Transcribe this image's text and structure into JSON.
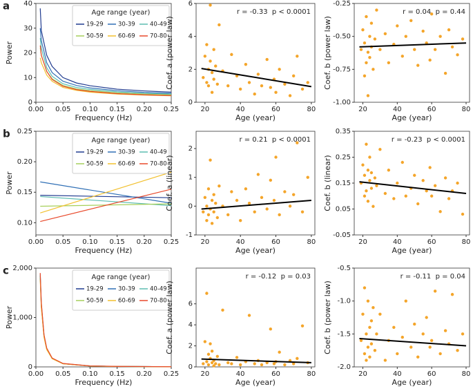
{
  "chart_data": [
    {
      "type": "line",
      "panel_label": "a",
      "xlabel": "Frequency (Hz)",
      "ylabel": "Power",
      "legend_title": "Age range (year)",
      "legend": "upper right",
      "x": [
        0.008,
        0.01,
        0.02,
        0.03,
        0.05,
        0.075,
        0.1,
        0.15,
        0.2,
        0.25
      ],
      "series": [
        {
          "name": "19-29",
          "color": "#1f3a8f",
          "values": [
            38,
            29,
            19,
            14.5,
            10,
            7.8,
            6.7,
            5.3,
            4.6,
            4.1
          ]
        },
        {
          "name": "30-39",
          "color": "#2f6fb5",
          "values": [
            30,
            25,
            16,
            12,
            8.5,
            6.8,
            5.8,
            4.7,
            4.0,
            3.6
          ]
        },
        {
          "name": "40-49",
          "color": "#5cbcb0",
          "values": [
            26,
            22,
            14,
            10.5,
            7.5,
            6,
            5.2,
            4.2,
            3.6,
            3.3
          ]
        },
        {
          "name": "50-59",
          "color": "#a6cf5a",
          "values": [
            22,
            19,
            12.5,
            9.5,
            6.8,
            5.4,
            4.7,
            3.8,
            3.3,
            3.0
          ]
        },
        {
          "name": "60-69",
          "color": "#f2c02e",
          "values": [
            18,
            16,
            11,
            8.5,
            6,
            4.8,
            4.1,
            3.3,
            2.9,
            2.6
          ]
        },
        {
          "name": "70-80",
          "color": "#e8482a",
          "values": [
            23,
            19,
            12.5,
            9.2,
            6.5,
            5.1,
            4.4,
            3.5,
            3.0,
            2.7
          ]
        }
      ],
      "xlim": [
        0,
        0.25
      ],
      "xticks": [
        {
          "value": 0,
          "label": "0.00"
        },
        0.05,
        {
          "value": 0.1,
          "label": "0.10"
        },
        0.15,
        {
          "value": 0.2,
          "label": "0.20"
        },
        0.25
      ],
      "ylim": [
        0,
        40
      ],
      "yticks": [
        0,
        10,
        20,
        30,
        40
      ]
    },
    {
      "type": "scatter",
      "xlabel": "Age (year)",
      "ylabel": "Coef. a (power law)",
      "annotation": "r = -0.33  p < 0.0001",
      "color": "#f4a52a",
      "x": [
        19,
        20,
        21,
        21,
        22,
        22,
        23,
        23,
        24,
        24,
        25,
        25,
        26,
        27,
        28,
        30,
        33,
        35,
        38,
        40,
        43,
        45,
        48,
        50,
        52,
        55,
        57,
        59,
        60,
        62,
        65,
        68,
        70,
        72,
        75,
        78
      ],
      "values": [
        1.5,
        2.8,
        1.2,
        3.5,
        2.0,
        1.0,
        5.9,
        2.5,
        1.8,
        0.6,
        3.2,
        1.4,
        2.2,
        1.1,
        4.7,
        1.9,
        1.0,
        2.9,
        1.6,
        0.8,
        2.3,
        1.2,
        0.5,
        1.7,
        1.0,
        2.6,
        0.9,
        1.4,
        0.6,
        2.0,
        1.1,
        0.4,
        1.6,
        2.8,
        0.8,
        1.2
      ],
      "fit": {
        "x": [
          18,
          80
        ],
        "y": [
          2.05,
          0.95
        ]
      },
      "xlim": [
        15,
        82
      ],
      "xticks": [
        20,
        40,
        60,
        80
      ],
      "ylim": [
        0,
        6
      ],
      "yticks": [
        0,
        2,
        4,
        6
      ]
    },
    {
      "type": "scatter",
      "xlabel": "Age (year)",
      "ylabel": "Coef. b (power law)",
      "annotation": "r = 0.04  p = 0.44",
      "color": "#f4a52a",
      "x": [
        19,
        20,
        21,
        21,
        22,
        22,
        23,
        23,
        24,
        24,
        25,
        25,
        26,
        27,
        28,
        30,
        33,
        35,
        38,
        40,
        43,
        45,
        48,
        50,
        52,
        55,
        57,
        59,
        60,
        62,
        65,
        68,
        70,
        72,
        75,
        78
      ],
      "values": [
        -0.6,
        -0.45,
        -0.8,
        -0.55,
        -0.7,
        -0.35,
        -0.62,
        -0.95,
        -0.5,
        -0.66,
        -0.4,
        -0.58,
        -0.75,
        -0.52,
        -0.3,
        -0.6,
        -0.48,
        -0.7,
        -0.56,
        -0.42,
        -0.65,
        -0.5,
        -0.38,
        -0.6,
        -0.72,
        -0.46,
        -0.55,
        -0.68,
        -0.33,
        -0.6,
        -0.5,
        -0.78,
        -0.45,
        -0.58,
        -0.64,
        -0.52
      ],
      "fit": {
        "x": [
          18,
          80
        ],
        "y": [
          -0.58,
          -0.55
        ]
      },
      "xlim": [
        15,
        82
      ],
      "xticks": [
        20,
        40,
        60,
        80
      ],
      "ylim": [
        -1,
        -0.25
      ],
      "yticks": [
        {
          "value": -1,
          "label": "-1.00"
        },
        -0.75,
        {
          "value": -0.5,
          "label": "-0.50"
        },
        -0.25
      ]
    },
    {
      "type": "line",
      "panel_label": "b",
      "xlabel": "Frequency (Hz)",
      "ylabel": "Power",
      "legend_title": "Age range (year)",
      "legend": "upper right",
      "x": [
        0.008,
        0.25
      ],
      "series": [
        {
          "name": "19-29",
          "color": "#1f3a8f",
          "values": [
            0.145,
            0.141
          ]
        },
        {
          "name": "30-39",
          "color": "#2f6fb5",
          "values": [
            0.167,
            0.132
          ]
        },
        {
          "name": "40-49",
          "color": "#5cbcb0",
          "values": [
            0.143,
            0.128
          ]
        },
        {
          "name": "50-59",
          "color": "#a6cf5a",
          "values": [
            0.127,
            0.131
          ]
        },
        {
          "name": "60-69",
          "color": "#f2c02e",
          "values": [
            0.116,
            0.183
          ]
        },
        {
          "name": "70-80",
          "color": "#e8482a",
          "values": [
            0.102,
            0.155
          ]
        }
      ],
      "xlim": [
        0,
        0.25
      ],
      "xticks": [
        {
          "value": 0,
          "label": "0.00"
        },
        0.05,
        {
          "value": 0.1,
          "label": "0.10"
        },
        0.15,
        {
          "value": 0.2,
          "label": "0.20"
        },
        0.25
      ],
      "ylim": [
        0.08,
        0.25
      ],
      "yticks": [
        {
          "value": 0.1,
          "label": "0.10"
        },
        0.15,
        {
          "value": 0.2,
          "label": "0.20"
        },
        0.25
      ]
    },
    {
      "type": "scatter",
      "xlabel": "Age (year)",
      "ylabel": "Coef. a (linear)",
      "annotation": "r = 0.21  p < 0.0001",
      "color": "#f4a52a",
      "x": [
        19,
        20,
        21,
        21,
        22,
        22,
        23,
        23,
        24,
        24,
        25,
        25,
        26,
        27,
        28,
        30,
        33,
        35,
        38,
        40,
        43,
        45,
        48,
        50,
        52,
        55,
        57,
        59,
        60,
        62,
        65,
        68,
        70,
        72,
        75,
        78
      ],
      "values": [
        -0.2,
        0.3,
        -0.5,
        0.0,
        0.6,
        -0.3,
        1.6,
        -0.1,
        0.2,
        -0.6,
        0.4,
        -0.2,
        0.1,
        -0.4,
        0.7,
        0.0,
        -0.3,
        0.5,
        0.2,
        -0.5,
        0.6,
        0.1,
        -0.2,
        1.1,
        0.3,
        -0.1,
        0.9,
        0.2,
        1.7,
        -0.3,
        0.5,
        0.0,
        0.4,
        2.2,
        -0.2,
        1.0
      ],
      "fit": {
        "x": [
          18,
          80
        ],
        "y": [
          -0.1,
          0.2
        ]
      },
      "xlim": [
        15,
        82
      ],
      "xticks": [
        20,
        40,
        60,
        80
      ],
      "ylim": [
        -1,
        2.6
      ],
      "yticks": [
        -1,
        0,
        1,
        2
      ]
    },
    {
      "type": "scatter",
      "xlabel": "Age (year)",
      "ylabel": "Coef. b (linear)",
      "annotation": "r = -0.23  p < 0.0001",
      "color": "#f4a52a",
      "x": [
        19,
        20,
        21,
        21,
        22,
        22,
        23,
        23,
        24,
        24,
        25,
        25,
        26,
        27,
        28,
        30,
        33,
        35,
        38,
        40,
        43,
        45,
        48,
        50,
        52,
        55,
        57,
        59,
        60,
        62,
        65,
        68,
        70,
        72,
        75,
        78
      ],
      "values": [
        0.15,
        0.22,
        0.1,
        0.18,
        0.3,
        0.12,
        0.2,
        0.08,
        0.16,
        0.25,
        0.13,
        0.19,
        0.06,
        0.17,
        0.14,
        0.28,
        0.11,
        0.2,
        0.09,
        0.15,
        0.23,
        0.1,
        0.13,
        0.18,
        0.07,
        0.16,
        0.12,
        0.21,
        0.1,
        0.14,
        0.04,
        0.17,
        0.09,
        0.12,
        0.15,
        0.03
      ],
      "fit": {
        "x": [
          18,
          80
        ],
        "y": [
          0.155,
          0.11
        ]
      },
      "xlim": [
        15,
        82
      ],
      "xticks": [
        20,
        40,
        60,
        80
      ],
      "ylim": [
        -0.05,
        0.35
      ],
      "yticks": [
        -0.05,
        0.05,
        0.15,
        0.25,
        0.35
      ]
    },
    {
      "type": "line",
      "panel_label": "c",
      "xlabel": "Frequency (Hz)",
      "ylabel": "Power",
      "legend_title": "Age range (year)",
      "legend": "upper right",
      "x": [
        0.008,
        0.01,
        0.015,
        0.02,
        0.03,
        0.05,
        0.1,
        0.15,
        0.25
      ],
      "series": [
        {
          "name": "19-29",
          "color": "#1f3a8f",
          "values": [
            1850,
            1250,
            620,
            360,
            170,
            65,
            18,
            9,
            4
          ]
        },
        {
          "name": "30-39",
          "color": "#2f6fb5",
          "values": [
            1800,
            1220,
            610,
            355,
            168,
            64,
            18,
            9,
            4
          ]
        },
        {
          "name": "40-49",
          "color": "#5cbcb0",
          "values": [
            1880,
            1280,
            640,
            370,
            175,
            67,
            19,
            9,
            4
          ]
        },
        {
          "name": "50-59",
          "color": "#a6cf5a",
          "values": [
            1820,
            1240,
            625,
            362,
            172,
            66,
            18,
            9,
            4
          ]
        },
        {
          "name": "60-69",
          "color": "#f2c02e",
          "values": [
            1760,
            1200,
            600,
            350,
            165,
            63,
            17,
            8,
            4
          ]
        },
        {
          "name": "70-80",
          "color": "#e8482a",
          "values": [
            1900,
            1300,
            650,
            380,
            180,
            70,
            20,
            10,
            4
          ]
        }
      ],
      "xlim": [
        0,
        0.25
      ],
      "xticks": [
        {
          "value": 0,
          "label": "0.00"
        },
        0.05,
        {
          "value": 0.1,
          "label": "0.10"
        },
        0.15,
        {
          "value": 0.2,
          "label": "0.20"
        },
        0.25
      ],
      "ylim": [
        0,
        2000
      ],
      "yticks": [
        0,
        {
          "value": 1000,
          "label": "1,000"
        },
        {
          "value": 2000,
          "label": "2,000"
        }
      ]
    },
    {
      "type": "scatter",
      "xlabel": "Age (year)",
      "ylabel": "Coef. a (power law)",
      "annotation": "r = -0.12  p = 0.03",
      "color": "#f4a52a",
      "x": [
        19,
        20,
        21,
        21,
        22,
        22,
        23,
        23,
        24,
        24,
        25,
        25,
        26,
        27,
        28,
        30,
        33,
        35,
        38,
        40,
        43,
        45,
        48,
        50,
        52,
        55,
        57,
        59,
        60,
        62,
        65,
        68,
        70,
        72,
        75,
        78
      ],
      "values": [
        0.3,
        2.4,
        0.5,
        7.0,
        1.2,
        0.2,
        0.8,
        2.2,
        0.4,
        1.5,
        0.1,
        0.6,
        0.3,
        1.0,
        0.2,
        5.4,
        0.4,
        0.3,
        0.9,
        0.2,
        0.5,
        4.9,
        0.3,
        0.6,
        0.2,
        0.4,
        3.6,
        0.3,
        0.5,
        1.4,
        0.2,
        0.6,
        0.3,
        0.8,
        3.9,
        0.4
      ],
      "fit": {
        "x": [
          18,
          80
        ],
        "y": [
          0.75,
          0.4
        ]
      },
      "xlim": [
        15,
        82
      ],
      "xticks": [
        20,
        40,
        60,
        80
      ],
      "ylim": [
        0,
        9.4
      ],
      "yticks": [
        0,
        2,
        4,
        6
      ]
    },
    {
      "type": "scatter",
      "xlabel": "Age (year)",
      "ylabel": "Coef. b (power law)",
      "annotation": "r = -0.11  p = 0.04",
      "color": "#f4a52a",
      "x": [
        19,
        20,
        21,
        21,
        22,
        22,
        23,
        23,
        24,
        24,
        25,
        25,
        26,
        27,
        28,
        30,
        33,
        35,
        38,
        40,
        43,
        45,
        48,
        50,
        52,
        55,
        57,
        59,
        60,
        62,
        65,
        68,
        70,
        72,
        75,
        78
      ],
      "values": [
        -1.6,
        -1.2,
        -1.8,
        -0.8,
        -1.5,
        -1.9,
        -1.0,
        -1.7,
        -1.4,
        -1.85,
        -1.3,
        -1.65,
        -1.1,
        -1.75,
        -1.5,
        -1.2,
        -1.9,
        -1.6,
        -1.4,
        -1.8,
        -1.55,
        -1.0,
        -1.7,
        -1.35,
        -1.85,
        -1.5,
        -1.25,
        -1.7,
        -1.6,
        -0.85,
        -1.8,
        -1.45,
        -1.65,
        -0.9,
        -1.75,
        -1.5
      ],
      "fit": {
        "x": [
          18,
          80
        ],
        "y": [
          -1.57,
          -1.68
        ]
      },
      "xlim": [
        15,
        82
      ],
      "xticks": [
        20,
        40,
        60,
        80
      ],
      "ylim": [
        -2,
        -0.5
      ],
      "yticks": [
        {
          "value": -2,
          "label": "-2.0"
        },
        -1.5,
        {
          "value": -1,
          "label": "-1.0"
        },
        -0.5
      ]
    }
  ]
}
